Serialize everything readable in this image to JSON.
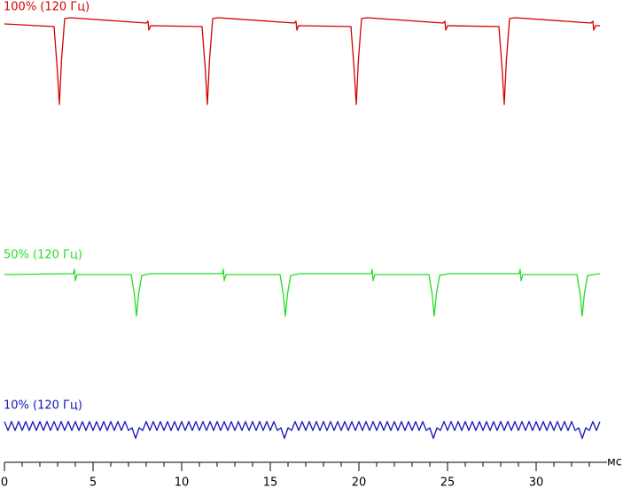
{
  "chart_data": [
    {
      "type": "line",
      "title": "100% (120 Гц)",
      "x": [
        0,
        2.8,
        2.98,
        3.1,
        3.22,
        3.4,
        3.7,
        8.0,
        8.1,
        8.15,
        8.25,
        11.15,
        11.33,
        11.45,
        11.57,
        11.75,
        12.05,
        16.35,
        16.45,
        16.5,
        16.6,
        19.55,
        19.73,
        19.85,
        19.97,
        20.15,
        20.45,
        24.75,
        24.85,
        24.9,
        25.0,
        27.9,
        28.08,
        28.2,
        28.32,
        28.5,
        28.8,
        33.1,
        33.2,
        33.25,
        33.35,
        33.6
      ],
      "series": [
        {
          "color": "#d40000",
          "values": [
            91,
            88,
            40,
            0,
            50,
            97,
            98,
            92,
            94,
            84,
            89,
            88,
            40,
            0,
            50,
            97,
            98,
            92,
            94,
            84,
            89,
            88,
            40,
            0,
            50,
            97,
            98,
            92,
            94,
            84,
            89,
            88,
            40,
            0,
            50,
            97,
            98,
            92,
            94,
            84,
            89,
            89
          ]
        }
      ],
      "xlim": [
        0,
        34
      ],
      "ylim": [
        0,
        100
      ]
    },
    {
      "type": "line",
      "title": "50% (120 Гц)",
      "x": [
        0,
        3.9,
        3.95,
        4.0,
        4.1,
        7.15,
        7.33,
        7.45,
        7.57,
        7.75,
        8.25,
        12.3,
        12.35,
        12.4,
        12.5,
        15.55,
        15.73,
        15.85,
        15.97,
        16.15,
        16.65,
        20.7,
        20.75,
        20.8,
        20.9,
        23.95,
        24.13,
        24.25,
        24.37,
        24.55,
        25.05,
        29.05,
        29.1,
        29.15,
        29.25,
        32.3,
        32.48,
        32.6,
        32.72,
        32.9,
        33.6
      ],
      "series": [
        {
          "color": "#22dd22",
          "values": [
            47,
            48,
            53,
            40,
            47,
            47,
            25,
            0,
            25,
            46,
            48,
            48,
            53,
            40,
            47,
            47,
            25,
            0,
            25,
            46,
            48,
            48,
            53,
            40,
            47,
            47,
            25,
            0,
            25,
            46,
            48,
            48,
            53,
            40,
            47,
            47,
            25,
            0,
            25,
            46,
            48
          ]
        }
      ],
      "xlim": [
        0,
        34
      ],
      "ylim": [
        0,
        100
      ]
    },
    {
      "type": "line",
      "title": "10% (120 Гц)",
      "x": [
        0,
        0.2,
        0.4,
        0.6,
        0.8,
        1,
        1.2,
        1.4,
        1.6,
        1.8,
        2,
        2.2,
        2.4,
        2.6,
        2.8,
        3,
        3.2,
        3.4,
        3.6,
        3.8,
        4,
        4.2,
        4.4,
        4.6,
        4.8,
        5,
        5.2,
        5.4,
        5.6,
        5.8,
        6,
        6.2,
        6.4,
        6.6,
        6.8,
        7,
        7.2,
        7.4,
        7.6,
        7.8,
        8,
        8.2,
        8.4,
        8.6,
        8.8,
        9,
        9.2,
        9.4,
        9.6,
        9.8,
        10,
        10.2,
        10.4,
        10.6,
        10.8,
        11,
        11.2,
        11.4,
        11.6,
        11.8,
        12,
        12.2,
        12.4,
        12.6,
        12.8,
        13,
        13.2,
        13.4,
        13.6,
        13.8,
        14,
        14.2,
        14.4,
        14.6,
        14.8,
        15,
        15.2,
        15.4,
        15.6,
        15.8,
        16,
        16.2,
        16.4,
        16.6,
        16.8,
        17,
        17.2,
        17.4,
        17.6,
        17.8,
        18,
        18.2,
        18.4,
        18.6,
        18.8,
        19,
        19.2,
        19.4,
        19.6,
        19.8,
        20,
        20.2,
        20.4,
        20.6,
        20.8,
        21,
        21.2,
        21.4,
        21.6,
        21.8,
        22,
        22.2,
        22.4,
        22.6,
        22.8,
        23,
        23.2,
        23.4,
        23.6,
        23.8,
        24,
        24.2,
        24.4,
        24.6,
        24.8,
        25,
        25.2,
        25.4,
        25.6,
        25.8,
        26,
        26.2,
        26.4,
        26.6,
        26.8,
        27,
        27.2,
        27.4,
        27.6,
        27.8,
        28,
        28.2,
        28.4,
        28.6,
        28.8,
        29,
        29.2,
        29.4,
        29.6,
        29.8,
        30,
        30.2,
        30.4,
        30.6,
        30.8,
        31,
        31.2,
        31.4,
        31.6,
        31.8,
        32,
        32.2,
        32.4,
        32.6,
        32.8,
        33,
        33.2,
        33.4,
        33.6
      ],
      "series": [
        {
          "color": "#1414b4",
          "values": [
            19,
            9,
            19,
            9,
            19,
            9,
            19,
            9,
            19,
            9,
            19,
            9,
            19,
            9,
            19,
            9,
            19,
            9,
            19,
            9,
            19,
            9,
            19,
            9,
            19,
            9,
            19,
            9,
            19,
            9,
            19,
            9,
            19,
            9,
            19,
            9,
            12,
            0,
            12,
            9,
            19,
            9,
            19,
            9,
            19,
            9,
            19,
            9,
            19,
            9,
            19,
            9,
            19,
            9,
            19,
            9,
            19,
            9,
            19,
            9,
            19,
            9,
            19,
            9,
            19,
            9,
            19,
            9,
            19,
            9,
            19,
            9,
            19,
            9,
            19,
            9,
            19,
            9,
            12,
            0,
            12,
            9,
            19,
            9,
            19,
            9,
            19,
            9,
            19,
            9,
            19,
            9,
            19,
            9,
            19,
            9,
            19,
            9,
            19,
            9,
            19,
            9,
            19,
            9,
            19,
            9,
            19,
            9,
            19,
            9,
            19,
            9,
            19,
            9,
            19,
            9,
            19,
            9,
            19,
            9,
            12,
            0,
            12,
            9,
            19,
            9,
            19,
            9,
            19,
            9,
            19,
            9,
            19,
            9,
            19,
            9,
            19,
            9,
            19,
            9,
            19,
            9,
            19,
            9,
            19,
            9,
            19,
            9,
            19,
            9,
            19,
            9,
            19,
            9,
            19,
            9,
            19,
            9,
            19,
            9,
            19,
            9,
            12,
            0,
            12,
            9,
            19,
            9,
            19
          ]
        }
      ],
      "xlim": [
        0,
        34
      ],
      "ylim": [
        0,
        100
      ],
      "xticks": [
        0,
        5,
        10,
        15,
        20,
        25,
        30
      ],
      "xminorticks": [
        0,
        1,
        2,
        3,
        4,
        5,
        6,
        7,
        8,
        9,
        10,
        11,
        12,
        13,
        14,
        15,
        16,
        17,
        18,
        19,
        20,
        21,
        22,
        23,
        24,
        25,
        26,
        27,
        28,
        29,
        30,
        31,
        32,
        33
      ],
      "xlabel": "мс"
    }
  ]
}
